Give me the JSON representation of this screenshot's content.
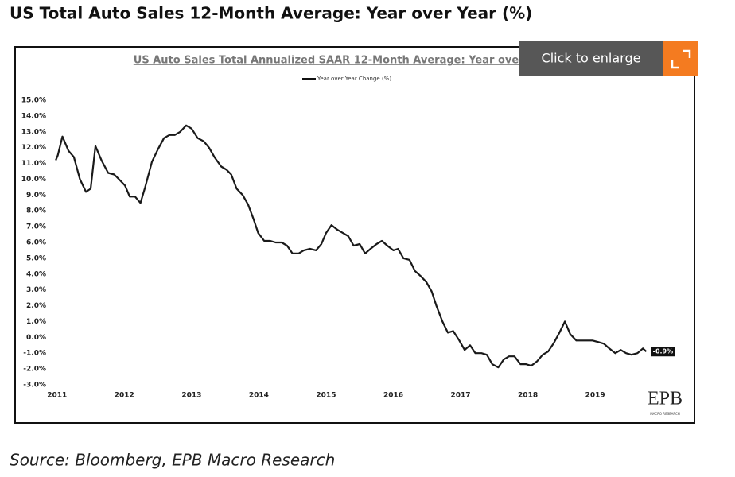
{
  "header": {
    "title": "US Total Auto Sales 12-Month Average: Year over Year (%)"
  },
  "chart_data": {
    "type": "line",
    "title": "US Auto Sales Total Annualized SAAR 12-Month Average: Year ove",
    "xlim": [
      2010.92,
      2019.85
    ],
    "xticks": [
      2011,
      2012,
      2013,
      2014,
      2015,
      2016,
      2017,
      2018,
      2019
    ],
    "ylim": [
      -3,
      15
    ],
    "yticks": [
      {
        "value": -3,
        "label": "-3.0%"
      },
      {
        "value": -2,
        "label": "-2.0%"
      },
      {
        "value": -1,
        "label": "-1.0%"
      },
      {
        "value": 0,
        "label": "0.0%"
      },
      {
        "value": 1,
        "label": "1.0%"
      },
      {
        "value": 2,
        "label": "2.0%"
      },
      {
        "value": 3,
        "label": "3.0%"
      },
      {
        "value": 4,
        "label": "4.0%"
      },
      {
        "value": 5,
        "label": "5.0%"
      },
      {
        "value": 6,
        "label": "6.0%"
      },
      {
        "value": 7,
        "label": "7.0%"
      },
      {
        "value": 8,
        "label": "8.0%"
      },
      {
        "value": 9,
        "label": "9.0%"
      },
      {
        "value": 10,
        "label": "10.0%"
      },
      {
        "value": 11,
        "label": "11.0%"
      },
      {
        "value": 12,
        "label": "12.0%"
      },
      {
        "value": 13,
        "label": "13.0%"
      },
      {
        "value": 14,
        "label": "14.0%"
      },
      {
        "value": 15,
        "label": "15.0%"
      }
    ],
    "grid": false,
    "x": [
      2010.98,
      2011.01,
      2011.08,
      2011.17,
      2011.25,
      2011.34,
      2011.43,
      2011.5,
      2011.57,
      2011.66,
      2011.76,
      2011.85,
      2011.92,
      2012.01,
      2012.08,
      2012.16,
      2012.24,
      2012.31,
      2012.41,
      2012.5,
      2012.59,
      2012.67,
      2012.75,
      2012.83,
      2012.92,
      2013.0,
      2013.09,
      2013.18,
      2013.26,
      2013.34,
      2013.44,
      2013.52,
      2013.59,
      2013.67,
      2013.76,
      2013.84,
      2013.92,
      2013.99,
      2014.08,
      2014.17,
      2014.25,
      2014.34,
      2014.42,
      2014.5,
      2014.59,
      2014.67,
      2014.76,
      2014.85,
      2014.93,
      2015.0,
      2015.08,
      2015.17,
      2015.25,
      2015.33,
      2015.41,
      2015.5,
      2015.58,
      2015.66,
      2015.75,
      2015.83,
      2015.91,
      2016.0,
      2016.07,
      2016.15,
      2016.24,
      2016.32,
      2016.4,
      2016.49,
      2016.57,
      2016.64,
      2016.73,
      2016.81,
      2016.89,
      2016.98,
      2017.06,
      2017.14,
      2017.22,
      2017.31,
      2017.39,
      2017.47,
      2017.56,
      2017.64,
      2017.72,
      2017.8,
      2017.89,
      2017.97,
      2018.05,
      2018.14,
      2018.22,
      2018.3,
      2018.38,
      2018.47,
      2018.55,
      2018.63,
      2018.72,
      2018.8,
      2018.88,
      2018.96,
      2019.05,
      2019.13,
      2019.21,
      2019.3,
      2019.38,
      2019.46,
      2019.54,
      2019.63,
      2019.71,
      2019.76
    ],
    "series": [
      {
        "name": "Year over Year Change (%)",
        "color": "#1a1a1a",
        "values": [
          11.2,
          11.5,
          12.7,
          11.8,
          11.4,
          10.0,
          9.2,
          9.4,
          12.1,
          11.2,
          10.4,
          10.3,
          10.0,
          9.6,
          8.9,
          8.9,
          8.5,
          9.5,
          11.1,
          11.9,
          12.6,
          12.8,
          12.8,
          13.0,
          13.4,
          13.2,
          12.6,
          12.4,
          12.0,
          11.4,
          10.8,
          10.6,
          10.3,
          9.4,
          9.0,
          8.4,
          7.5,
          6.6,
          6.1,
          6.1,
          6.0,
          6.0,
          5.8,
          5.3,
          5.3,
          5.5,
          5.6,
          5.5,
          5.9,
          6.6,
          7.1,
          6.8,
          6.6,
          6.4,
          5.8,
          5.9,
          5.3,
          5.6,
          5.9,
          6.1,
          5.8,
          5.5,
          5.6,
          5.0,
          4.9,
          4.2,
          3.9,
          3.5,
          2.9,
          2.0,
          1.0,
          0.3,
          0.4,
          -0.2,
          -0.8,
          -0.5,
          -1.0,
          -1.0,
          -1.1,
          -1.7,
          -1.9,
          -1.4,
          -1.2,
          -1.2,
          -1.7,
          -1.7,
          -1.8,
          -1.5,
          -1.1,
          -0.9,
          -0.4,
          0.3,
          1.0,
          0.2,
          -0.2,
          -0.2,
          -0.2,
          -0.2,
          -0.3,
          -0.4,
          -0.7,
          -1.0,
          -0.8,
          -1.0,
          -1.1,
          -1.0,
          -0.7,
          -0.9
        ],
        "value_labels": [
          null,
          null,
          null,
          null,
          null,
          null,
          null,
          null,
          null,
          null,
          null,
          null,
          null,
          null,
          null,
          null,
          null,
          null,
          null,
          null,
          null,
          null,
          null,
          null,
          null,
          null,
          null,
          null,
          null,
          null,
          null,
          null,
          null,
          null,
          null,
          null,
          null,
          null,
          null,
          null,
          null,
          null,
          null,
          null,
          null,
          null,
          null,
          null,
          null,
          null,
          null,
          null,
          null,
          null,
          null,
          null,
          null,
          null,
          null,
          null,
          null,
          null,
          null,
          null,
          null,
          null,
          null,
          null,
          null,
          null,
          null,
          null,
          null,
          null,
          null,
          null,
          null,
          null,
          null,
          null,
          null,
          null,
          null,
          null,
          null,
          null,
          null,
          null,
          null,
          null,
          null,
          null,
          null,
          null,
          null,
          null,
          null,
          null,
          null,
          null,
          null,
          null,
          null,
          null,
          null,
          null,
          null,
          "-0.9%"
        ]
      }
    ],
    "logo": {
      "name": "EPB",
      "tagline": "MACRO RESEARCH"
    }
  },
  "overlay": {
    "button": "Click to enlarge"
  },
  "source": "Source: Bloomberg, EPB Macro Research"
}
